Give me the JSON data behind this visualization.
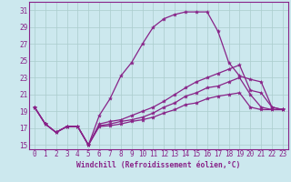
{
  "xlabel": "Windchill (Refroidissement éolien,°C)",
  "bg_color": "#cce8ee",
  "grid_color": "#aacccc",
  "line_color": "#882288",
  "xlim": [
    -0.5,
    23.5
  ],
  "ylim": [
    14.5,
    32.0
  ],
  "yticks": [
    15,
    17,
    19,
    21,
    23,
    25,
    27,
    29,
    31
  ],
  "xticks": [
    0,
    1,
    2,
    3,
    4,
    5,
    6,
    7,
    8,
    9,
    10,
    11,
    12,
    13,
    14,
    15,
    16,
    17,
    18,
    19,
    20,
    21,
    22,
    23
  ],
  "series": [
    [
      19.5,
      17.5,
      16.5,
      17.2,
      17.2,
      15.0,
      18.5,
      20.5,
      23.2,
      24.8,
      27.0,
      29.0,
      30.0,
      30.5,
      30.8,
      30.8,
      30.8,
      28.5,
      24.8,
      23.2,
      22.8,
      22.5,
      19.5,
      19.2
    ],
    [
      19.5,
      17.5,
      16.5,
      17.2,
      17.2,
      15.0,
      17.5,
      17.8,
      18.0,
      18.5,
      19.0,
      19.5,
      20.2,
      21.0,
      21.8,
      22.5,
      23.0,
      23.5,
      24.0,
      24.5,
      21.5,
      21.2,
      19.5,
      19.2
    ],
    [
      19.5,
      17.5,
      16.5,
      17.2,
      17.2,
      15.0,
      17.3,
      17.5,
      17.8,
      18.0,
      18.3,
      18.8,
      19.5,
      20.0,
      20.8,
      21.2,
      21.8,
      22.0,
      22.5,
      23.0,
      21.0,
      19.5,
      19.2,
      19.2
    ],
    [
      19.5,
      17.5,
      16.5,
      17.2,
      17.2,
      15.0,
      17.2,
      17.3,
      17.5,
      17.8,
      18.0,
      18.3,
      18.8,
      19.2,
      19.8,
      20.0,
      20.5,
      20.8,
      21.0,
      21.2,
      19.5,
      19.2,
      19.2,
      19.2
    ]
  ],
  "tick_fontsize": 5.5,
  "xlabel_fontsize": 5.8,
  "marker_size": 3.0,
  "linewidth": 0.9
}
